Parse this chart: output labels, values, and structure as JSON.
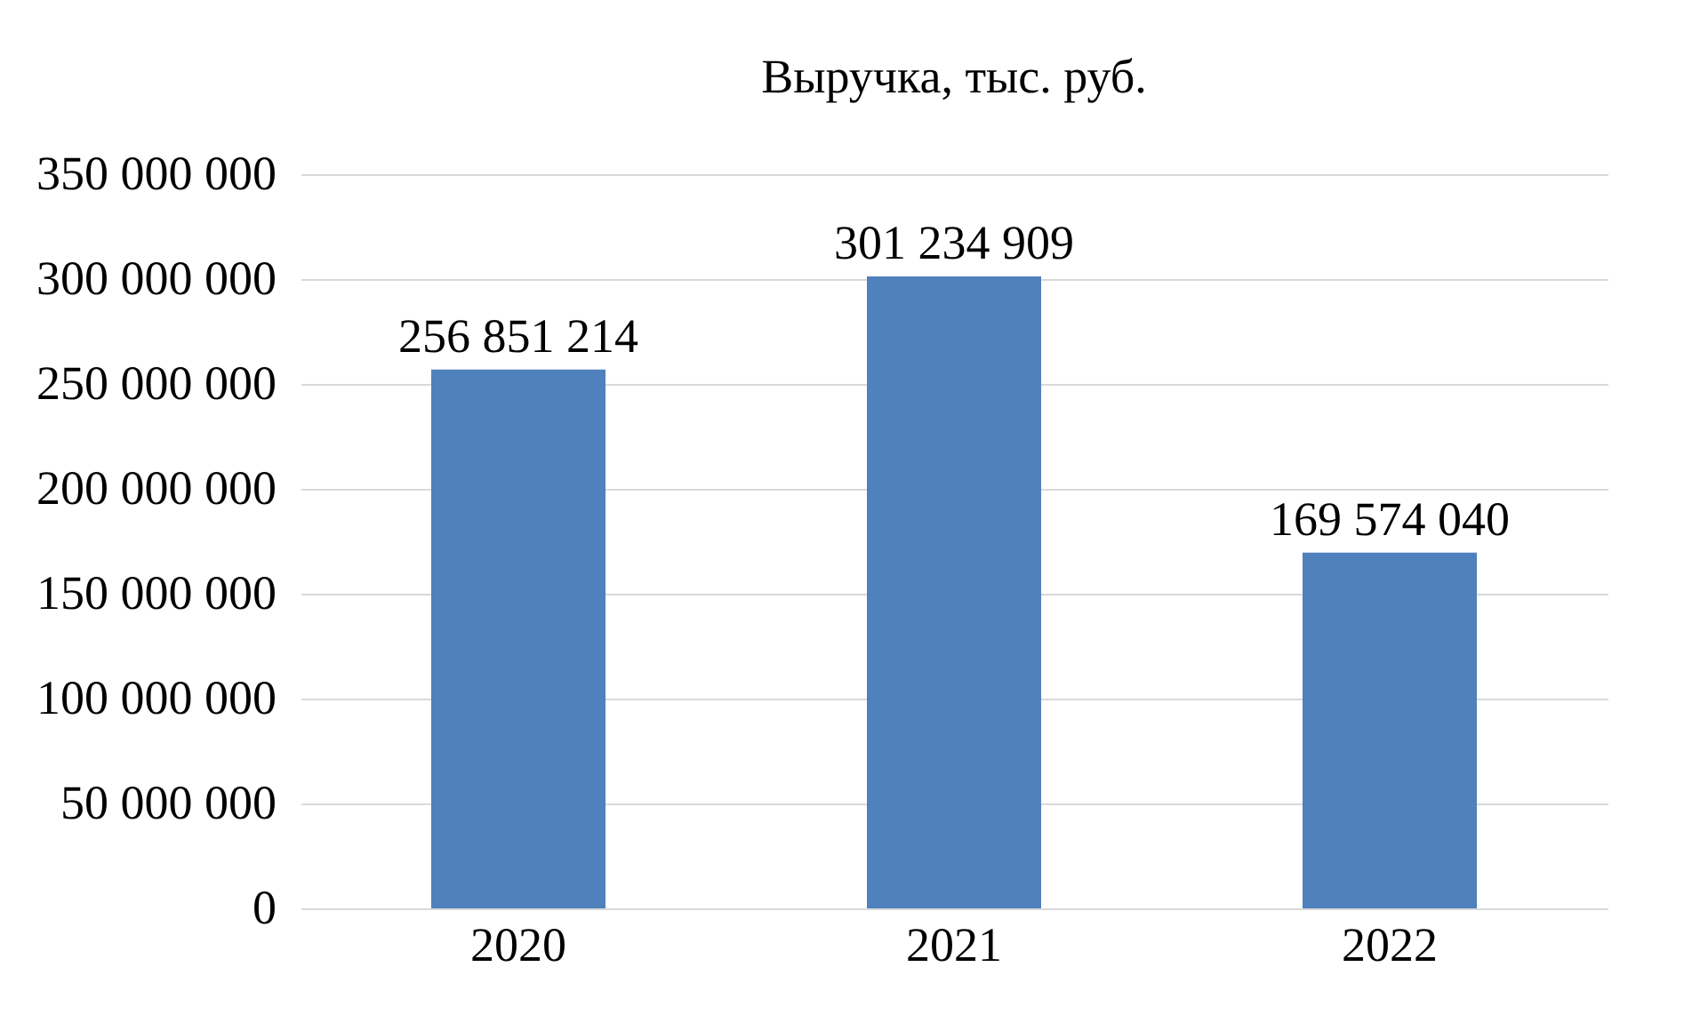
{
  "chart_data": {
    "type": "bar",
    "title": "Выручка, тыс. руб.",
    "categories": [
      "2020",
      "2021",
      "2022"
    ],
    "values": [
      256851214,
      301234909,
      169574040
    ],
    "value_labels": [
      "256 851 214",
      "301 234 909",
      "169 574 040"
    ],
    "color": "#4f81bd",
    "ylim": [
      0,
      350000000
    ],
    "yticks": [
      {
        "value": 0,
        "label": "0"
      },
      {
        "value": 50000000,
        "label": "50 000 000"
      },
      {
        "value": 100000000,
        "label": "100 000 000"
      },
      {
        "value": 150000000,
        "label": "150 000 000"
      },
      {
        "value": 200000000,
        "label": "200 000 000"
      },
      {
        "value": 250000000,
        "label": "250 000 000"
      },
      {
        "value": 300000000,
        "label": "300 000 000"
      },
      {
        "value": 350000000,
        "label": "350 000 000"
      }
    ],
    "grid": "y"
  }
}
